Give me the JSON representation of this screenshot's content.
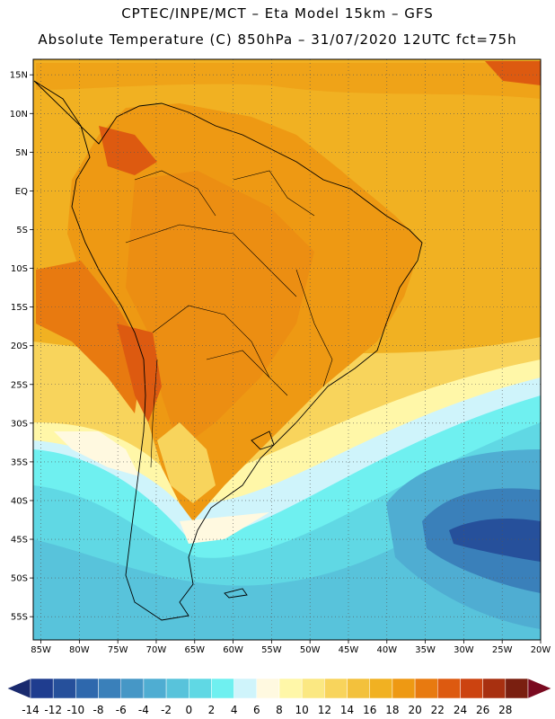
{
  "header": {
    "line1": "CPTEC/INPE/MCT –  Eta Model 15km – GFS",
    "line2": "Absolute Temperature (C) 850hPa – 31/07/2020 12UTC fct=75h"
  },
  "map": {
    "lon_range": [
      -86,
      -20
    ],
    "lat_range": [
      -58,
      17
    ],
    "lon_ticks": [
      {
        "v": -85,
        "label": "85W"
      },
      {
        "v": -80,
        "label": "80W"
      },
      {
        "v": -75,
        "label": "75W"
      },
      {
        "v": -70,
        "label": "70W"
      },
      {
        "v": -65,
        "label": "65W"
      },
      {
        "v": -60,
        "label": "60W"
      },
      {
        "v": -55,
        "label": "55W"
      },
      {
        "v": -50,
        "label": "50W"
      },
      {
        "v": -45,
        "label": "45W"
      },
      {
        "v": -40,
        "label": "40W"
      },
      {
        "v": -35,
        "label": "35W"
      },
      {
        "v": -30,
        "label": "30W"
      },
      {
        "v": -25,
        "label": "25W"
      },
      {
        "v": -20,
        "label": "20W"
      }
    ],
    "lat_ticks": [
      {
        "v": 15,
        "label": "15N"
      },
      {
        "v": 10,
        "label": "10N"
      },
      {
        "v": 5,
        "label": "5N"
      },
      {
        "v": 0,
        "label": "EQ"
      },
      {
        "v": -5,
        "label": "5S"
      },
      {
        "v": -10,
        "label": "10S"
      },
      {
        "v": -15,
        "label": "15S"
      },
      {
        "v": -20,
        "label": "20S"
      },
      {
        "v": -25,
        "label": "25S"
      },
      {
        "v": -30,
        "label": "30S"
      },
      {
        "v": -35,
        "label": "35S"
      },
      {
        "v": -40,
        "label": "40S"
      },
      {
        "v": -45,
        "label": "45S"
      },
      {
        "v": -50,
        "label": "50S"
      },
      {
        "v": -55,
        "label": "55S"
      }
    ]
  },
  "colorbar": {
    "labels": [
      "-14",
      "-12",
      "-10",
      "-8",
      "-6",
      "-4",
      "-2",
      "0",
      "2",
      "4",
      "6",
      "8",
      "10",
      "12",
      "14",
      "16",
      "18",
      "20",
      "22",
      "24",
      "26",
      "28"
    ],
    "colors": [
      "#1f3d8f",
      "#26509b",
      "#2e68ad",
      "#3a80ba",
      "#4697c6",
      "#4fadd2",
      "#58c3db",
      "#60d8e4",
      "#6ff0f0",
      "#cff4fb",
      "#fff9e0",
      "#fff7a8",
      "#fbe882",
      "#f8d45c",
      "#f3c13c",
      "#f1b122",
      "#ee9913",
      "#e87a10",
      "#dd5a10",
      "#cc4310",
      "#a83010",
      "#7a1f10"
    ],
    "low_color": "#1a2a6e",
    "high_color": "#7a0a20"
  }
}
